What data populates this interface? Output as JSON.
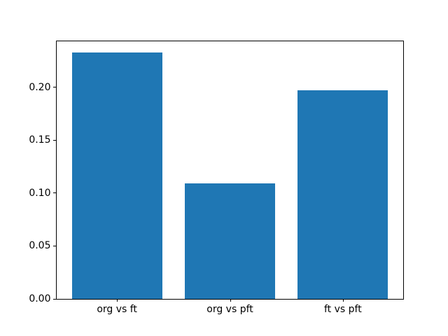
{
  "figure": {
    "background": "#ffffff"
  },
  "chart_data": {
    "type": "bar",
    "categories": [
      "org vs ft",
      "org vs pft",
      "ft vs pft"
    ],
    "values": [
      0.233,
      0.109,
      0.197
    ],
    "title": "",
    "xlabel": "",
    "ylabel": "",
    "ylim": [
      0,
      0.2443
    ],
    "xlim": [
      -0.54,
      2.54
    ],
    "bar_positions": [
      0,
      1,
      2
    ],
    "bar_width": 0.8,
    "yticks": [
      0.0,
      0.05,
      0.1,
      0.15,
      0.2
    ],
    "ytick_labels": [
      "0.00",
      "0.05",
      "0.10",
      "0.15",
      "0.20"
    ],
    "bar_color": "#1f77b4",
    "axis_color": "#000000",
    "text_color": "#000000",
    "grid": false,
    "legend": null
  }
}
